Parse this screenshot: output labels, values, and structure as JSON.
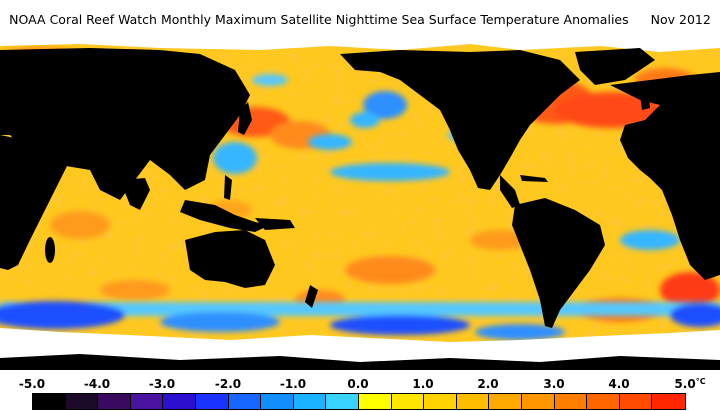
{
  "header": {
    "title": "NOAA Coral Reef Watch Monthly Maximum Satellite Nighttime Sea Surface Temperature Anomalies",
    "date": "Nov 2012"
  },
  "colors": {
    "land": "#000000",
    "sea_ice": "#ffffff",
    "ocean_base": "#ffc81e",
    "warm": "#ff8a1a",
    "hot": "#ff3a12",
    "cool": "#35b6ff",
    "cold": "#1a50ff"
  },
  "legend": {
    "unit": "°C",
    "ticks": [
      "-5.0",
      "-4.0",
      "-3.0",
      "-2.0",
      "-1.0",
      "0.0",
      "1.0",
      "2.0",
      "3.0",
      "4.0",
      "5.0"
    ],
    "swatches": [
      "#000000",
      "#1b0a2a",
      "#3a0a60",
      "#4a14a0",
      "#2b10d0",
      "#1a33ff",
      "#1666ff",
      "#118fff",
      "#1bb3ff",
      "#38d3ff",
      "#ffff00",
      "#ffe600",
      "#ffd200",
      "#ffbd00",
      "#ffa800",
      "#ff9600",
      "#ff7e00",
      "#ff6600",
      "#ff4a00",
      "#ff2600"
    ]
  }
}
